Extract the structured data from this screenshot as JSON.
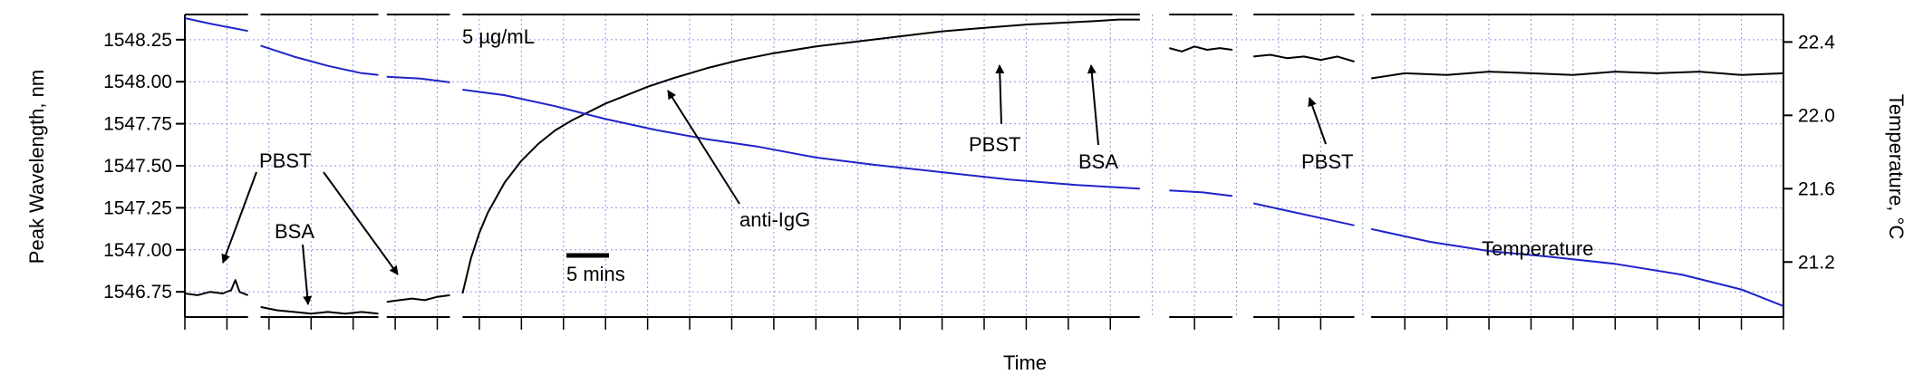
{
  "chart_data": {
    "type": "line",
    "title": "",
    "xlabel": "Time",
    "ylabel_left": "Peak Wavelength, nm",
    "ylabel_right": "Temperature, °C",
    "grid": true,
    "left_axis": {
      "ylim": [
        1546.6,
        1548.4
      ],
      "ticks": [
        1546.75,
        1547.0,
        1547.25,
        1547.5,
        1547.75,
        1548.0,
        1548.25
      ],
      "tick_labels": [
        "1546.75",
        "1547.00",
        "1547.25",
        "1547.50",
        "1547.75",
        "1548.00",
        "1548.25"
      ]
    },
    "right_axis": {
      "ylim": [
        20.9,
        22.55
      ],
      "ticks": [
        21.2,
        21.6,
        22.0,
        22.4
      ],
      "tick_labels": [
        "21.2",
        "21.6",
        "22.0",
        "22.4"
      ]
    },
    "x_range_minutes": [
      0,
      190
    ],
    "scale_bar": {
      "label": "5 mins",
      "minutes": 5
    },
    "series": [
      {
        "axis": "left",
        "color": "#000000",
        "segments": [
          {
            "x": [
              0,
              1.5,
              3,
              4.5,
              5.5,
              6,
              6.5,
              7.5
            ],
            "y": [
              1546.74,
              1546.73,
              1546.75,
              1546.74,
              1546.76,
              1546.82,
              1546.75,
              1546.73
            ]
          },
          {
            "x": [
              9,
              11,
              13,
              15,
              17,
              19,
              21,
              23
            ],
            "y": [
              1546.66,
              1546.64,
              1546.63,
              1546.62,
              1546.63,
              1546.62,
              1546.63,
              1546.62
            ]
          },
          {
            "x": [
              24,
              25.5,
              27,
              28.5,
              30,
              31.5
            ],
            "y": [
              1546.69,
              1546.7,
              1546.71,
              1546.7,
              1546.72,
              1546.73
            ]
          },
          {
            "x": [
              33,
              34,
              35,
              36,
              38,
              40,
              42,
              44,
              46,
              48,
              50,
              52,
              55,
              58,
              62,
              66,
              70,
              75,
              80,
              85,
              90,
              95,
              100,
              104,
              108,
              111,
              113.5
            ],
            "y": [
              1546.74,
              1546.95,
              1547.1,
              1547.22,
              1547.4,
              1547.53,
              1547.63,
              1547.71,
              1547.77,
              1547.82,
              1547.87,
              1547.91,
              1547.97,
              1548.02,
              1548.08,
              1548.13,
              1548.17,
              1548.21,
              1548.24,
              1548.27,
              1548.3,
              1548.32,
              1548.34,
              1548.35,
              1548.36,
              1548.37,
              1548.37
            ]
          },
          {
            "x": [
              117,
              118.5,
              120,
              121.5,
              123,
              124.5
            ],
            "y": [
              1548.2,
              1548.18,
              1548.21,
              1548.19,
              1548.2,
              1548.19
            ]
          },
          {
            "x": [
              127,
              129,
              131,
              133,
              135,
              137,
              139
            ],
            "y": [
              1548.15,
              1548.16,
              1548.14,
              1548.15,
              1548.13,
              1548.15,
              1548.12
            ]
          },
          {
            "x": [
              141,
              145,
              150,
              155,
              160,
              165,
              170,
              175,
              180,
              185,
              190
            ],
            "y": [
              1548.02,
              1548.05,
              1548.04,
              1548.06,
              1548.05,
              1548.04,
              1548.06,
              1548.05,
              1548.06,
              1548.04,
              1548.05
            ]
          }
        ]
      },
      {
        "name": "Temperature",
        "axis": "right",
        "color": "#1f23c8",
        "segments": [
          {
            "x": [
              0,
              3,
              7.5
            ],
            "y": [
              22.53,
              22.5,
              22.46
            ]
          },
          {
            "x": [
              9,
              13,
              17,
              21,
              23
            ],
            "y": [
              22.38,
              22.32,
              22.27,
              22.23,
              22.22
            ]
          },
          {
            "x": [
              24,
              28,
              31.5
            ],
            "y": [
              22.21,
              22.2,
              22.18
            ]
          },
          {
            "x": [
              33,
              38,
              44,
              50,
              56,
              62,
              68,
              75,
              82,
              90,
              98,
              106,
              113.5
            ],
            "y": [
              22.14,
              22.11,
              22.05,
              21.98,
              21.92,
              21.87,
              21.83,
              21.77,
              21.73,
              21.69,
              21.65,
              21.62,
              21.6
            ]
          },
          {
            "x": [
              117,
              121,
              124.5
            ],
            "y": [
              21.59,
              21.58,
              21.56
            ]
          },
          {
            "x": [
              127,
              131,
              135,
              139
            ],
            "y": [
              21.52,
              21.48,
              21.44,
              21.4
            ]
          },
          {
            "x": [
              141,
              148,
              155,
              162,
              170,
              178,
              185,
              190
            ],
            "y": [
              21.38,
              21.31,
              21.26,
              21.23,
              21.19,
              21.13,
              21.05,
              20.96
            ]
          }
        ]
      }
    ],
    "annotations": [
      {
        "text": "5 µg/mL"
      },
      {
        "text": "PBST"
      },
      {
        "text": "BSA"
      },
      {
        "text": "anti-IgG"
      },
      {
        "text": "PBST"
      },
      {
        "text": "BSA"
      },
      {
        "text": "PBST"
      },
      {
        "text": "Temperature"
      }
    ]
  }
}
